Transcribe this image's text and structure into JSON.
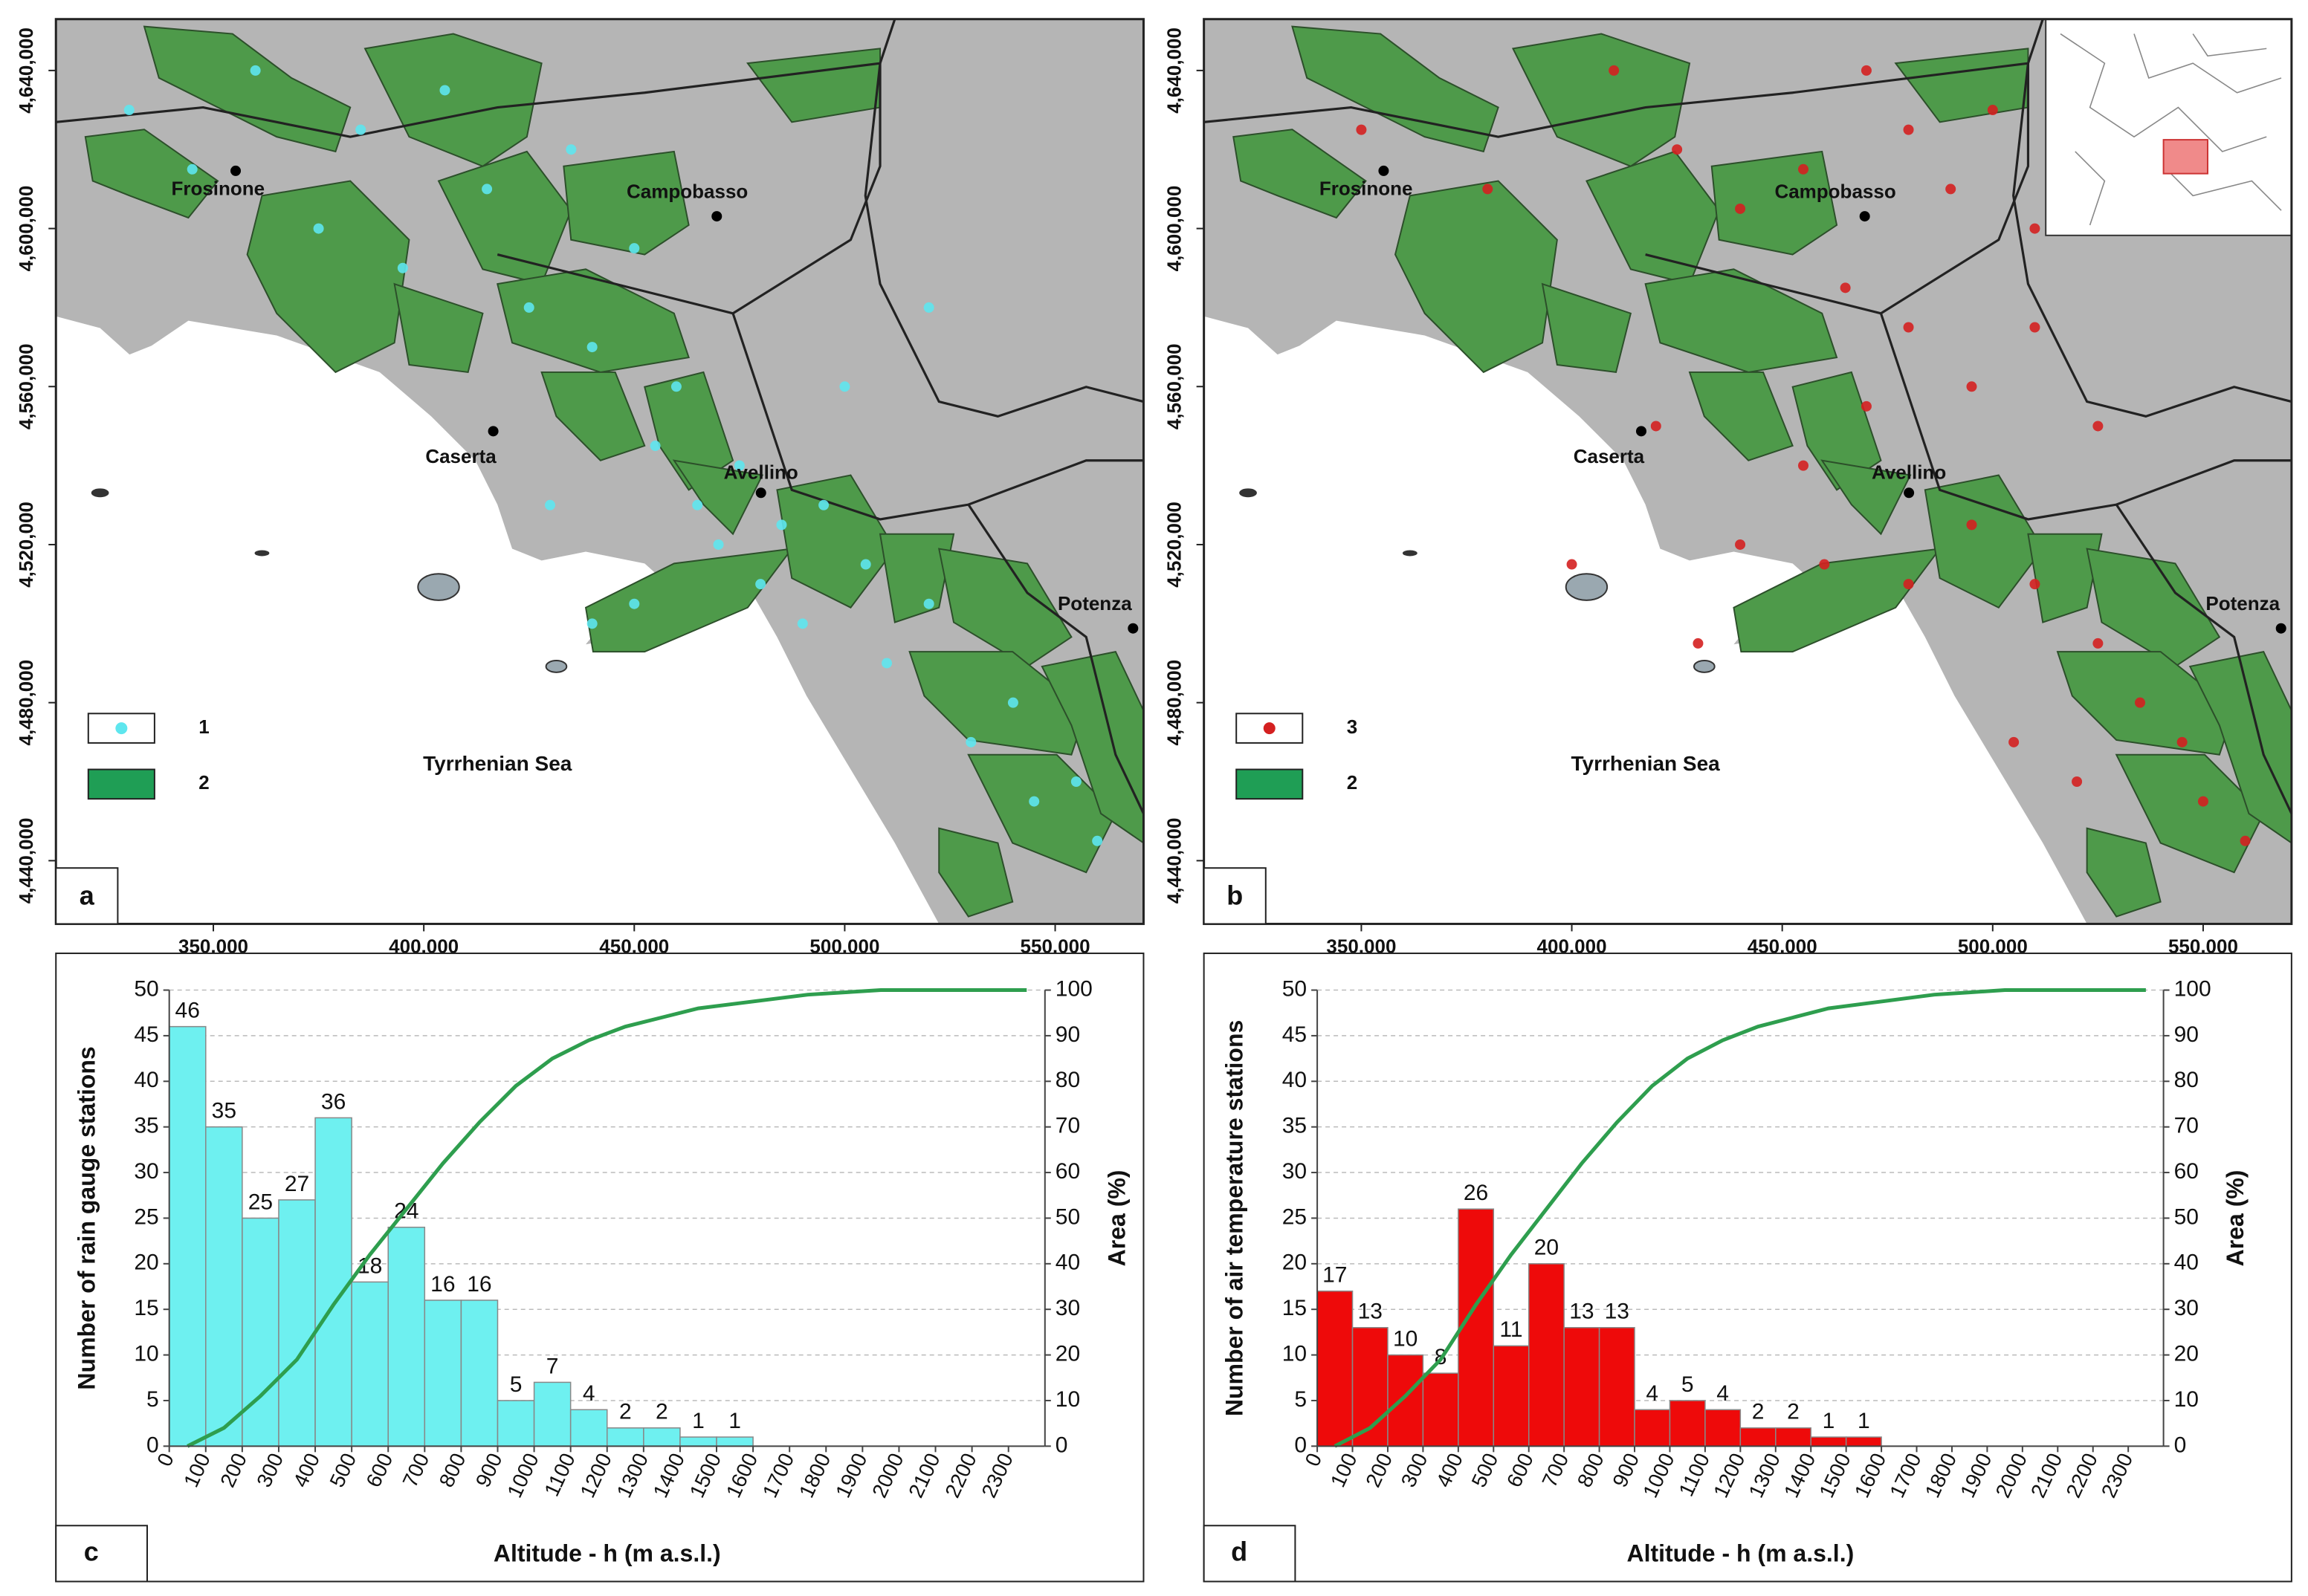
{
  "chart_data": [
    {
      "type": "map",
      "panel": "a",
      "xlim": [
        312600,
        571000
      ],
      "ylim": [
        4424000,
        4653000
      ],
      "xticks": [
        {
          "value": 350000,
          "label": "350,000"
        },
        {
          "value": 400000,
          "label": "400,000"
        },
        {
          "value": 450000,
          "label": "450,000"
        },
        {
          "value": 500000,
          "label": "500,000"
        },
        {
          "value": 550000,
          "label": "550,000"
        }
      ],
      "yticks": [
        {
          "value": 4440000,
          "label": "4,440,000"
        },
        {
          "value": 4480000,
          "label": "4,480,000"
        },
        {
          "value": 4520000,
          "label": "4,520,000"
        },
        {
          "value": 4560000,
          "label": "4,560,000"
        },
        {
          "value": 4600000,
          "label": "4,600,000"
        },
        {
          "value": 4640000,
          "label": "4,640,000"
        }
      ],
      "cities": [
        {
          "name": "Frosinone",
          "x": 355300,
          "y": 4614600
        },
        {
          "name": "Campobasso",
          "x": 469600,
          "y": 4603100
        },
        {
          "name": "Caserta",
          "x": 416500,
          "y": 4548700
        },
        {
          "name": "Avellino",
          "x": 480100,
          "y": 4533100
        },
        {
          "name": "Potenza",
          "x": 568500,
          "y": 4498800
        }
      ],
      "sea_label": "Tyrrhenian Sea",
      "stations": {
        "name": "1",
        "color": "#5ee6ee",
        "x": [
          330000,
          345000,
          360000,
          375000,
          385000,
          395000,
          405000,
          415000,
          425000,
          435000,
          440000,
          450000,
          455000,
          460000,
          465000,
          470000,
          475000,
          480000,
          485000,
          490000,
          495000,
          505000,
          510000,
          520000,
          530000,
          540000,
          545000,
          555000,
          560000,
          500000,
          520000,
          430000,
          450000,
          440000
        ],
        "y": [
          4630000,
          4615000,
          4640000,
          4600000,
          4625000,
          4590000,
          4635000,
          4610000,
          4580000,
          4620000,
          4570000,
          4595000,
          4545000,
          4560000,
          4530000,
          4520000,
          4540000,
          4510000,
          4525000,
          4500000,
          4530000,
          4515000,
          4490000,
          4505000,
          4470000,
          4480000,
          4455000,
          4460000,
          4445000,
          4560000,
          4580000,
          4530000,
          4505000,
          4500000
        ]
      },
      "zones": {
        "name": "2",
        "color": "#1f9e55"
      }
    },
    {
      "type": "map",
      "panel": "b",
      "xlim": [
        312600,
        571000
      ],
      "ylim": [
        4424000,
        4653000
      ],
      "xticks": [
        {
          "value": 350000,
          "label": "350,000"
        },
        {
          "value": 400000,
          "label": "400,000"
        },
        {
          "value": 450000,
          "label": "450,000"
        },
        {
          "value": 500000,
          "label": "500,000"
        },
        {
          "value": 550000,
          "label": "550,000"
        }
      ],
      "yticks": [
        {
          "value": 4440000,
          "label": "4,440,000"
        },
        {
          "value": 4480000,
          "label": "4,480,000"
        },
        {
          "value": 4520000,
          "label": "4,520,000"
        },
        {
          "value": 4560000,
          "label": "4,560,000"
        },
        {
          "value": 4600000,
          "label": "4,600,000"
        },
        {
          "value": 4640000,
          "label": "4,640,000"
        }
      ],
      "cities": [
        {
          "name": "Frosinone",
          "x": 355300,
          "y": 4614600
        },
        {
          "name": "Campobasso",
          "x": 469600,
          "y": 4603100
        },
        {
          "name": "Caserta",
          "x": 416500,
          "y": 4548700
        },
        {
          "name": "Avellino",
          "x": 480100,
          "y": 4533100
        },
        {
          "name": "Potenza",
          "x": 568500,
          "y": 4498800
        }
      ],
      "sea_label": "Tyrrhenian Sea",
      "stations": {
        "name": "3",
        "color": "#d42020",
        "x": [
          350000,
          380000,
          410000,
          425000,
          440000,
          455000,
          470000,
          480000,
          490000,
          500000,
          510000,
          465000,
          480000,
          495000,
          510000,
          525000,
          470000,
          455000,
          420000,
          440000,
          460000,
          480000,
          495000,
          510000,
          525000,
          535000,
          505000,
          520000,
          545000,
          550000,
          560000,
          400000,
          430000
        ],
        "y": [
          4625000,
          4610000,
          4640000,
          4620000,
          4605000,
          4615000,
          4640000,
          4625000,
          4610000,
          4630000,
          4600000,
          4585000,
          4575000,
          4560000,
          4575000,
          4550000,
          4555000,
          4540000,
          4550000,
          4520000,
          4515000,
          4510000,
          4525000,
          4510000,
          4495000,
          4480000,
          4470000,
          4460000,
          4470000,
          4455000,
          4445000,
          4515000,
          4495000
        ]
      },
      "zones": {
        "name": "2",
        "color": "#1f9e55"
      }
    },
    {
      "type": "histogram",
      "panel": "c",
      "bins": [
        0,
        100,
        200,
        300,
        400,
        500,
        600,
        700,
        800,
        900,
        1000,
        1100,
        1200,
        1300,
        1400,
        1500,
        1600
      ],
      "counts": [
        46,
        35,
        25,
        27,
        36,
        18,
        24,
        16,
        16,
        5,
        7,
        4,
        2,
        2,
        1,
        1
      ],
      "color": "#6ef0f0",
      "xlim": [
        0,
        2400
      ],
      "xticks": [
        0,
        100,
        200,
        300,
        400,
        500,
        600,
        700,
        800,
        900,
        1000,
        1100,
        1200,
        1300,
        1400,
        1500,
        1600,
        1700,
        1800,
        1900,
        2000,
        2100,
        2200,
        2300
      ],
      "ylim": [
        0,
        50
      ],
      "yticks": [
        0,
        5,
        10,
        15,
        20,
        25,
        30,
        35,
        40,
        45,
        50
      ],
      "y2lim": [
        0,
        100
      ],
      "y2ticks": [
        0,
        10,
        20,
        30,
        40,
        50,
        60,
        70,
        80,
        90,
        100
      ],
      "xlabel": "Altitude - h (m a.s.l.)",
      "ylabel": "Number of rain gauge stations",
      "y2label": "Area (%)",
      "grid": true,
      "curve": {
        "axis": "y2",
        "color": "#2e9e4e",
        "x": [
          50,
          150,
          250,
          350,
          450,
          550,
          650,
          750,
          850,
          950,
          1050,
          1150,
          1250,
          1350,
          1450,
          1550,
          1650,
          1750,
          1850,
          1950,
          2050,
          2150,
          2250,
          2350
        ],
        "values": [
          0,
          4,
          11,
          19,
          31,
          42,
          52,
          62,
          71,
          79,
          85,
          89,
          92,
          94,
          96,
          97,
          98,
          99,
          99.5,
          100,
          100,
          100,
          100,
          100
        ]
      }
    },
    {
      "type": "histogram",
      "panel": "d",
      "bins": [
        0,
        100,
        200,
        300,
        400,
        500,
        600,
        700,
        800,
        900,
        1000,
        1100,
        1200,
        1300,
        1400,
        1500,
        1600
      ],
      "counts": [
        17,
        13,
        10,
        8,
        26,
        11,
        20,
        13,
        13,
        4,
        5,
        4,
        2,
        2,
        1,
        1
      ],
      "color": "#ee0a0a",
      "xlim": [
        0,
        2400
      ],
      "xticks": [
        0,
        100,
        200,
        300,
        400,
        500,
        600,
        700,
        800,
        900,
        1000,
        1100,
        1200,
        1300,
        1400,
        1500,
        1600,
        1700,
        1800,
        1900,
        2000,
        2100,
        2200,
        2300
      ],
      "ylim": [
        0,
        50
      ],
      "yticks": [
        0,
        5,
        10,
        15,
        20,
        25,
        30,
        35,
        40,
        45,
        50
      ],
      "y2lim": [
        0,
        100
      ],
      "y2ticks": [
        0,
        10,
        20,
        30,
        40,
        50,
        60,
        70,
        80,
        90,
        100
      ],
      "xlabel": "Altitude - h (m a.s.l.)",
      "ylabel": "Number of air temperature stations",
      "y2label": "Area (%)",
      "grid": true,
      "curve": {
        "axis": "y2",
        "color": "#2e9e4e",
        "x": [
          50,
          150,
          250,
          350,
          450,
          550,
          650,
          750,
          850,
          950,
          1050,
          1150,
          1250,
          1350,
          1450,
          1550,
          1650,
          1750,
          1850,
          1950,
          2050,
          2150,
          2250,
          2350
        ],
        "values": [
          0,
          4,
          11,
          19,
          31,
          42,
          52,
          62,
          71,
          79,
          85,
          89,
          92,
          94,
          96,
          97,
          98,
          99,
          99.5,
          100,
          100,
          100,
          100,
          100
        ]
      }
    }
  ]
}
